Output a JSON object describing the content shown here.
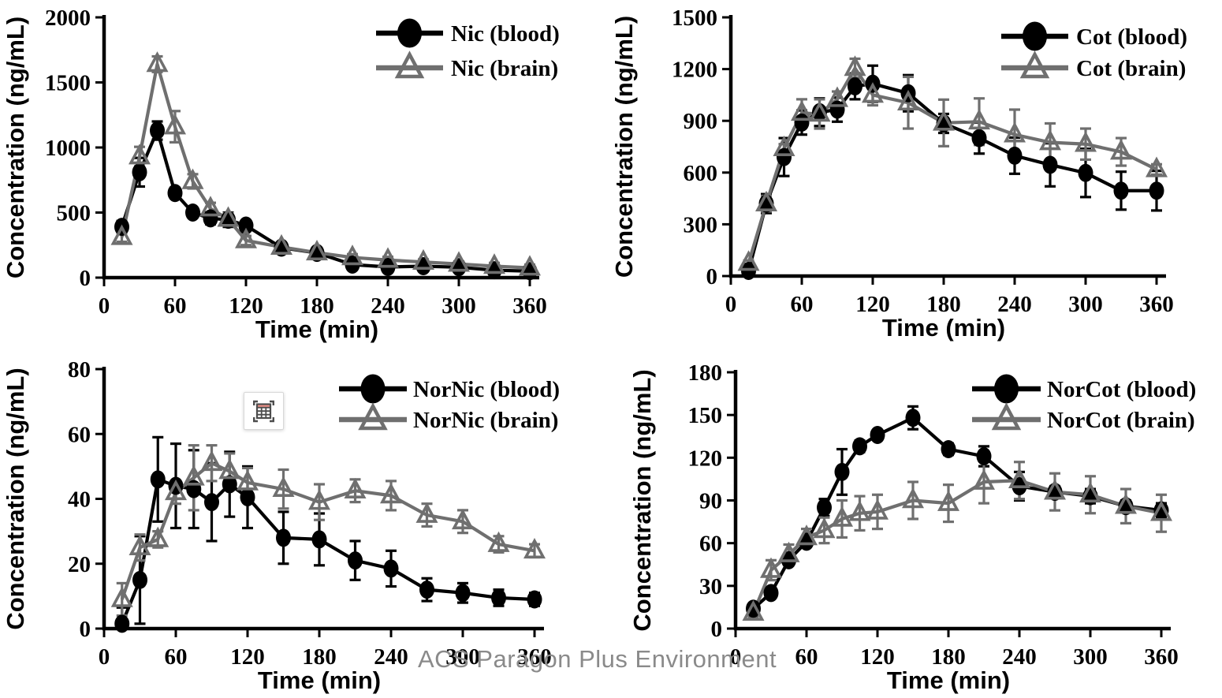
{
  "figure": {
    "watermark": "ACS Paragon Plus Environment",
    "overlay": {
      "floating_icon": "chart-table-paste-options"
    }
  },
  "colors": {
    "blood": "#000000",
    "brain": "#6f6f6f",
    "axis": "#000000",
    "watermark": "#8a8a8a",
    "icon_glyph": "#4d4d4d",
    "icon_header": "#f2938a"
  },
  "chart_data": [
    {
      "type": "line",
      "analyte": "Nic",
      "xlabel": "Time (min)",
      "ylabel": "Concentration (ng/mL)",
      "x": [
        15,
        30,
        45,
        60,
        75,
        90,
        105,
        120,
        150,
        180,
        210,
        240,
        270,
        300,
        330,
        360
      ],
      "xticks": [
        0,
        60,
        120,
        180,
        240,
        300,
        360
      ],
      "yticks": [
        0,
        500,
        1000,
        1500,
        2000
      ],
      "ylim": [
        0,
        2000
      ],
      "grid": false,
      "legend_position": "top-right",
      "series": [
        {
          "name": "Nic (blood)",
          "compartment": "blood",
          "marker": "circle",
          "values": [
            390,
            810,
            1130,
            650,
            500,
            455,
            445,
            400,
            230,
            190,
            100,
            82,
            88,
            80,
            57,
            50
          ],
          "errors": [
            45,
            110,
            70,
            40,
            35,
            45,
            55,
            25,
            20,
            15,
            25,
            15,
            20,
            15,
            15,
            15
          ]
        },
        {
          "name": "Nic (brain)",
          "compartment": "brain",
          "marker": "triangle",
          "values": [
            310,
            930,
            1640,
            1160,
            740,
            530,
            450,
            285,
            235,
            192,
            155,
            135,
            120,
            105,
            88,
            75
          ],
          "errors": [
            35,
            75,
            60,
            120,
            55,
            45,
            45,
            35,
            25,
            20,
            25,
            25,
            20,
            20,
            25,
            25
          ]
        }
      ]
    },
    {
      "type": "line",
      "analyte": "Cot",
      "xlabel": "Time (min)",
      "ylabel": "Concentration (ng/mL)",
      "x": [
        15,
        30,
        45,
        60,
        75,
        90,
        105,
        120,
        150,
        180,
        210,
        240,
        270,
        300,
        330,
        360
      ],
      "xticks": [
        0,
        60,
        120,
        180,
        240,
        300,
        360
      ],
      "yticks": [
        0,
        300,
        600,
        900,
        1200,
        1500
      ],
      "ylim": [
        0,
        1500
      ],
      "grid": false,
      "legend_position": "top-right",
      "series": [
        {
          "name": "Cot (blood)",
          "compartment": "blood",
          "marker": "circle",
          "values": [
            30,
            420,
            690,
            890,
            950,
            965,
            1100,
            1115,
            1060,
            885,
            800,
            698,
            645,
            598,
            495,
            495
          ],
          "errors": [
            15,
            55,
            110,
            70,
            80,
            70,
            75,
            105,
            105,
            55,
            90,
            105,
            125,
            140,
            110,
            115
          ]
        },
        {
          "name": "Cot (brain)",
          "compartment": "brain",
          "marker": "triangle",
          "values": [
            75,
            420,
            740,
            945,
            940,
            1025,
            1205,
            1050,
            1005,
            888,
            895,
            820,
            775,
            765,
            720,
            618
          ],
          "errors": [
            15,
            45,
            25,
            80,
            85,
            45,
            55,
            60,
            150,
            135,
            135,
            145,
            110,
            90,
            80,
            30
          ]
        }
      ]
    },
    {
      "type": "line",
      "analyte": "NorNic",
      "xlabel": "Time (min)",
      "ylabel": "Concentration (ng/mL)",
      "x": [
        15,
        30,
        45,
        60,
        75,
        90,
        105,
        120,
        150,
        180,
        210,
        240,
        270,
        300,
        330,
        360
      ],
      "xticks": [
        0,
        60,
        120,
        180,
        240,
        300,
        360
      ],
      "yticks": [
        0,
        20,
        40,
        60,
        80
      ],
      "ylim": [
        0,
        80
      ],
      "grid": false,
      "legend_position": "top-right",
      "series": [
        {
          "name": "NorNic (blood)",
          "compartment": "blood",
          "marker": "circle",
          "values": [
            1.5,
            15,
            46,
            44,
            43,
            39,
            44.5,
            40.5,
            28,
            27.5,
            21,
            18.5,
            12,
            11,
            9.5,
            9
          ],
          "errors": [
            5,
            13.5,
            13,
            13,
            12,
            12,
            10,
            9.5,
            8,
            8,
            6,
            5.5,
            3.5,
            3,
            2.5,
            2
          ]
        },
        {
          "name": "NorNic (brain)",
          "compartment": "brain",
          "marker": "triangle",
          "values": [
            9,
            25,
            27.5,
            42,
            46.5,
            51,
            48.5,
            45,
            43,
            39,
            42.5,
            41,
            35,
            33,
            26,
            24
          ],
          "errors": [
            5,
            4,
            2.5,
            3.5,
            10,
            5.5,
            5.5,
            4.5,
            6,
            5.5,
            3.5,
            4.5,
            3.5,
            3.5,
            2.5,
            2
          ]
        }
      ]
    },
    {
      "type": "line",
      "analyte": "NorCot",
      "xlabel": "Time (min)",
      "ylabel": "Concentration (ng/mL)",
      "x": [
        15,
        30,
        45,
        60,
        75,
        90,
        105,
        120,
        150,
        180,
        210,
        240,
        270,
        300,
        330,
        360
      ],
      "xticks": [
        0,
        60,
        120,
        180,
        240,
        300,
        360
      ],
      "yticks": [
        0,
        30,
        60,
        90,
        120,
        150,
        180
      ],
      "ylim": [
        0,
        180
      ],
      "grid": false,
      "legend_position": "top-right",
      "series": [
        {
          "name": "NorCot (blood)",
          "compartment": "blood",
          "marker": "circle",
          "values": [
            14,
            25,
            48,
            61,
            85,
            110,
            128,
            136,
            148,
            126,
            121,
            100,
            96,
            93,
            86,
            83
          ],
          "errors": [
            3,
            3,
            3,
            3,
            6,
            16,
            4,
            3,
            8,
            4,
            7,
            10,
            4,
            5,
            4,
            5
          ]
        },
        {
          "name": "NorCot (brain)",
          "compartment": "brain",
          "marker": "triangle",
          "values": [
            11,
            41,
            52,
            64,
            69,
            77,
            81,
            82,
            90,
            88,
            103,
            104,
            96,
            94,
            86,
            81
          ],
          "errors": [
            3,
            7,
            7,
            6,
            9,
            13,
            12,
            12,
            13,
            13,
            15,
            13,
            13,
            13,
            12,
            13
          ]
        }
      ]
    }
  ]
}
